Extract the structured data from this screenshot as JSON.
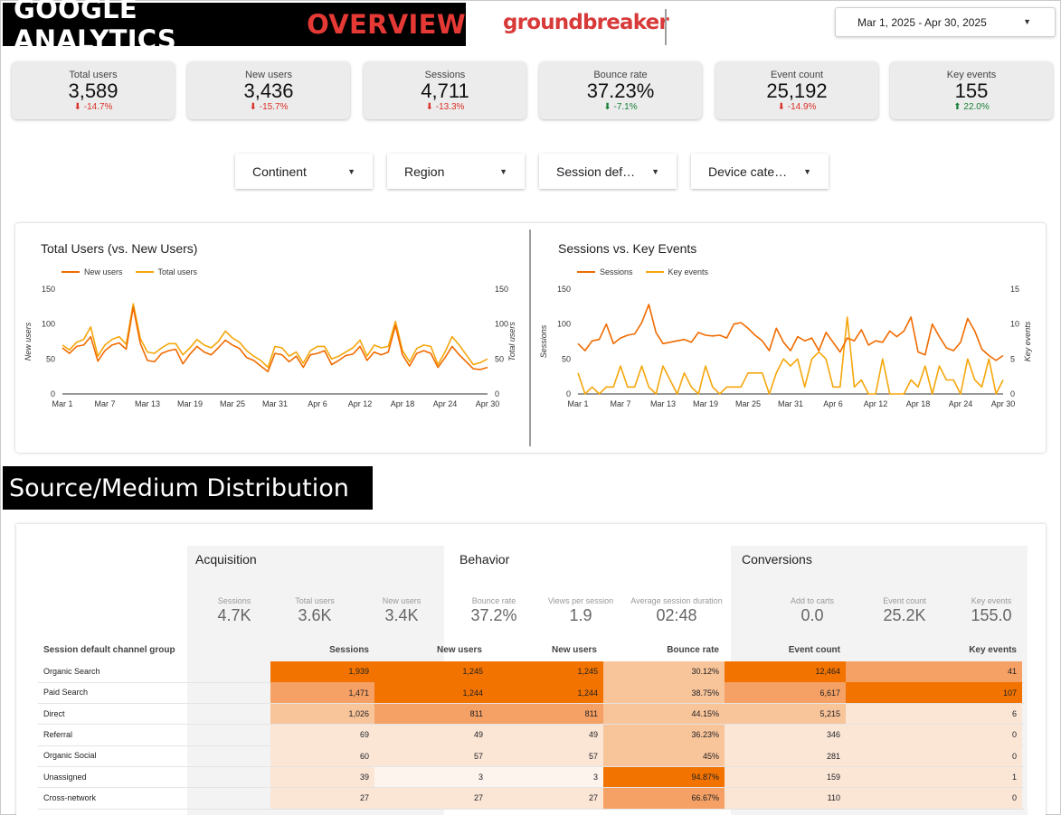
{
  "header": {
    "title_part1": "GOOGLE ANALYTICS",
    "title_part2": "OVERVIEW",
    "brand": "groundbreaker",
    "date_range": "Mar 1, 2025 - Apr 30, 2025"
  },
  "kpis": [
    {
      "label": "Total users",
      "value": "3,589",
      "delta": "-14.7%",
      "direction": "down"
    },
    {
      "label": "New users",
      "value": "3,436",
      "delta": "-15.7%",
      "direction": "down"
    },
    {
      "label": "Sessions",
      "value": "4,711",
      "delta": "-13.3%",
      "direction": "down"
    },
    {
      "label": "Bounce rate",
      "value": "37.23%",
      "delta": "-7.1%",
      "direction": "up"
    },
    {
      "label": "Event count",
      "value": "25,192",
      "delta": "-14.9%",
      "direction": "down"
    },
    {
      "label": "Key events",
      "value": "155",
      "delta": "22.0%",
      "direction": "up"
    }
  ],
  "filters": [
    "Continent",
    "Region",
    "Session def…",
    "Device cate…"
  ],
  "chart_data": [
    {
      "type": "line",
      "title": "Total Users (vs. New Users)",
      "x_ticks": [
        "Mar 1",
        "Mar 7",
        "Mar 13",
        "Mar 19",
        "Mar 25",
        "Mar 31",
        "Apr 6",
        "Apr 12",
        "Apr 18",
        "Apr 24",
        "Apr 30"
      ],
      "ylabel_left": "New users",
      "ylabel_right": "Total users",
      "y_left_ticks": [
        "0",
        "50",
        "100",
        "150"
      ],
      "y_right_ticks": [
        "0",
        "50",
        "100",
        "150"
      ],
      "ylim_left": [
        0,
        150
      ],
      "ylim_right": [
        0,
        150
      ],
      "legend_position": "top-left",
      "series": [
        {
          "name": "New users",
          "axis": "left",
          "color": "#f06b00",
          "values": [
            66,
            58,
            68,
            70,
            82,
            47,
            62,
            70,
            73,
            64,
            124,
            72,
            48,
            46,
            58,
            62,
            64,
            43,
            57,
            68,
            60,
            56,
            66,
            77,
            70,
            65,
            52,
            48,
            40,
            32,
            58,
            56,
            46,
            54,
            38,
            56,
            58,
            62,
            42,
            48,
            55,
            57,
            68,
            48,
            60,
            56,
            60,
            98,
            56,
            40,
            58,
            62,
            58,
            38,
            52,
            68,
            56,
            46,
            36,
            35,
            38
          ]
        },
        {
          "name": "Total users",
          "axis": "right",
          "color": "#f5a60b",
          "values": [
            70,
            63,
            74,
            78,
            96,
            54,
            70,
            78,
            82,
            71,
            129,
            79,
            60,
            58,
            66,
            72,
            72,
            56,
            66,
            78,
            70,
            66,
            75,
            90,
            80,
            74,
            62,
            54,
            48,
            38,
            68,
            66,
            54,
            60,
            44,
            62,
            68,
            68,
            50,
            54,
            60,
            66,
            77,
            54,
            70,
            66,
            68,
            104,
            62,
            46,
            65,
            70,
            68,
            42,
            60,
            82,
            70,
            56,
            42,
            45,
            50
          ]
        }
      ]
    },
    {
      "type": "line",
      "title": "Sessions vs. Key Events",
      "x_ticks": [
        "Mar 1",
        "Mar 7",
        "Mar 13",
        "Mar 19",
        "Mar 25",
        "Mar 31",
        "Apr 6",
        "Apr 12",
        "Apr 18",
        "Apr 24",
        "Apr 30"
      ],
      "ylabel_left": "Sessions",
      "ylabel_right": "Key events",
      "y_left_ticks": [
        "0",
        "50",
        "100",
        "150"
      ],
      "y_right_ticks": [
        "0",
        "5",
        "10",
        "15"
      ],
      "ylim_left": [
        0,
        150
      ],
      "ylim_right": [
        0,
        15
      ],
      "legend_position": "top-left",
      "series": [
        {
          "name": "Sessions",
          "axis": "left",
          "color": "#f06b00",
          "values": [
            72,
            62,
            76,
            78,
            100,
            72,
            80,
            84,
            86,
            102,
            128,
            88,
            72,
            74,
            76,
            78,
            74,
            88,
            84,
            83,
            84,
            80,
            100,
            102,
            94,
            84,
            76,
            62,
            94,
            74,
            62,
            82,
            76,
            80,
            62,
            88,
            74,
            60,
            80,
            76,
            92,
            70,
            76,
            74,
            90,
            82,
            90,
            110,
            60,
            56,
            100,
            82,
            66,
            62,
            74,
            108,
            90,
            64,
            55,
            48,
            55
          ]
        },
        {
          "name": "Key events",
          "axis": "right",
          "color": "#f5a60b",
          "values": [
            3,
            0,
            1,
            0,
            1,
            1,
            4,
            1,
            1,
            4,
            1,
            0,
            4,
            2,
            0,
            3,
            1,
            0,
            4,
            1,
            0,
            1,
            1,
            1,
            3,
            3,
            3,
            0,
            3,
            5,
            4,
            5,
            1,
            5,
            6,
            5,
            1,
            1,
            11,
            1,
            2,
            0,
            0,
            5,
            0,
            0,
            0,
            2,
            1,
            4,
            0,
            4,
            2,
            2,
            0,
            5,
            2,
            1,
            5,
            0,
            2
          ]
        }
      ]
    }
  ],
  "source_table": {
    "section_title": "Source/Medium Distribution",
    "groups": [
      {
        "title": "Acquisition",
        "summary": [
          {
            "label": "Sessions",
            "value": "4.7K"
          },
          {
            "label": "Total users",
            "value": "3.6K"
          },
          {
            "label": "New users",
            "value": "3.4K"
          }
        ]
      },
      {
        "title": "Behavior",
        "summary": [
          {
            "label": "Bounce rate",
            "value": "37.2%"
          },
          {
            "label": "Views per session",
            "value": "1.9"
          },
          {
            "label": "Average session duration",
            "value": "02:48"
          }
        ]
      },
      {
        "title": "Conversions",
        "summary": [
          {
            "label": "Add to carts",
            "value": "0.0"
          },
          {
            "label": "Event count",
            "value": "25.2K"
          },
          {
            "label": "Key events",
            "value": "155.0"
          }
        ]
      }
    ],
    "columns": [
      "Session default channel group",
      "Sessions",
      "New users",
      "New users",
      "Bounce rate",
      "Event count",
      "Key events"
    ],
    "rows": [
      {
        "name": "Organic Search",
        "cells": [
          "1,939",
          "1,245",
          "1,245",
          "30.12%",
          "12,464",
          "41"
        ]
      },
      {
        "name": "Paid Search",
        "cells": [
          "1,471",
          "1,244",
          "1,244",
          "38.75%",
          "6,617",
          "107"
        ]
      },
      {
        "name": "Direct",
        "cells": [
          "1,026",
          "811",
          "811",
          "44.15%",
          "5,215",
          "6"
        ]
      },
      {
        "name": "Referral",
        "cells": [
          "69",
          "49",
          "49",
          "36.23%",
          "346",
          "0"
        ]
      },
      {
        "name": "Organic Social",
        "cells": [
          "60",
          "57",
          "57",
          "45%",
          "281",
          "0"
        ]
      },
      {
        "name": "Unassigned",
        "cells": [
          "39",
          "3",
          "3",
          "94.87%",
          "159",
          "1"
        ]
      },
      {
        "name": "Cross-network",
        "cells": [
          "27",
          "27",
          "27",
          "66.67%",
          "110",
          "0"
        ]
      }
    ],
    "heat_colors": {
      "high": "#f27300",
      "mid": "#f5a064",
      "low": "#f8c49a",
      "faint": "#fbe6d6",
      "none": "#fdf4ee"
    },
    "heat_levels": [
      [
        "high",
        "high",
        "high",
        "low",
        "high",
        "mid"
      ],
      [
        "mid",
        "high",
        "high",
        "low",
        "mid",
        "high"
      ],
      [
        "low",
        "mid",
        "mid",
        "low",
        "low",
        "faint"
      ],
      [
        "faint",
        "faint",
        "faint",
        "low",
        "faint",
        "faint"
      ],
      [
        "faint",
        "faint",
        "faint",
        "low",
        "faint",
        "faint"
      ],
      [
        "faint",
        "none",
        "none",
        "high",
        "faint",
        "faint"
      ],
      [
        "faint",
        "faint",
        "faint",
        "mid",
        "faint",
        "faint"
      ]
    ]
  }
}
